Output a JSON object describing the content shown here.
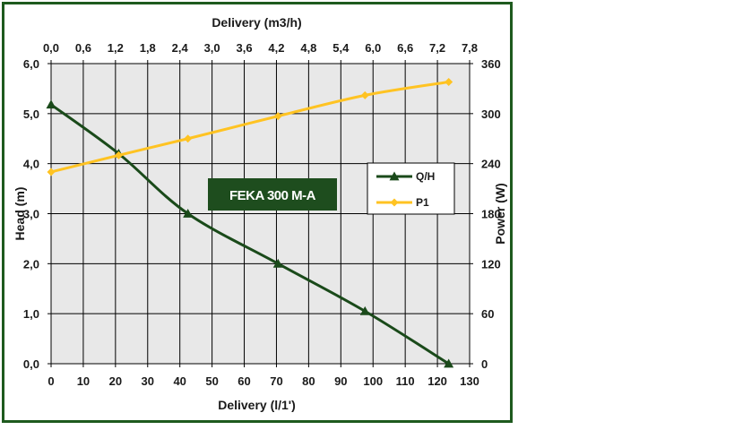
{
  "chart_data": {
    "type": "line",
    "title": "FEKA 300 M-A",
    "xlabel": "Delivery (l/1')",
    "xlabel_top": "Delivery (m3/h)",
    "ylabel": "Head (m)",
    "ylabel_right": "Power (W)",
    "xlim": [
      0,
      130
    ],
    "ylim": [
      0,
      6
    ],
    "ylim_right": [
      0,
      360
    ],
    "x_ticks": [
      "0",
      "10",
      "20",
      "30",
      "40",
      "50",
      "60",
      "70",
      "80",
      "90",
      "100",
      "110",
      "120",
      "130"
    ],
    "x_top_ticks": [
      "0,0",
      "0,6",
      "1,2",
      "1,8",
      "2,4",
      "3,0",
      "3,6",
      "4,2",
      "4,8",
      "5,4",
      "6,0",
      "6,6",
      "7,2",
      "7,8"
    ],
    "y_ticks": [
      "0,0",
      "1,0",
      "2,0",
      "3,0",
      "4,0",
      "5,0",
      "6,0"
    ],
    "y_right_ticks": [
      "0",
      "60",
      "120",
      "180",
      "240",
      "300",
      "360"
    ],
    "grid": true,
    "legend_position": "right",
    "series": [
      {
        "name": "Q/H",
        "axis": "left",
        "color": "#1a4a1a",
        "marker": "triangle",
        "x": [
          0,
          21,
          42.5,
          70.5,
          97.5,
          123.5
        ],
        "y": [
          5.18,
          4.2,
          3.0,
          2.0,
          1.05,
          0.0
        ]
      },
      {
        "name": "P1",
        "axis": "right",
        "color": "#ffc322",
        "marker": "diamond",
        "x": [
          0,
          21,
          42.5,
          70.5,
          97.5,
          123.5
        ],
        "y": [
          230,
          250,
          270,
          297,
          322,
          338
        ]
      }
    ]
  },
  "colors": {
    "frame": "#1e5a1e",
    "plot_bg": "#e8e8e8",
    "grid": "#000000",
    "badge_bg": "#1e4d1e"
  }
}
